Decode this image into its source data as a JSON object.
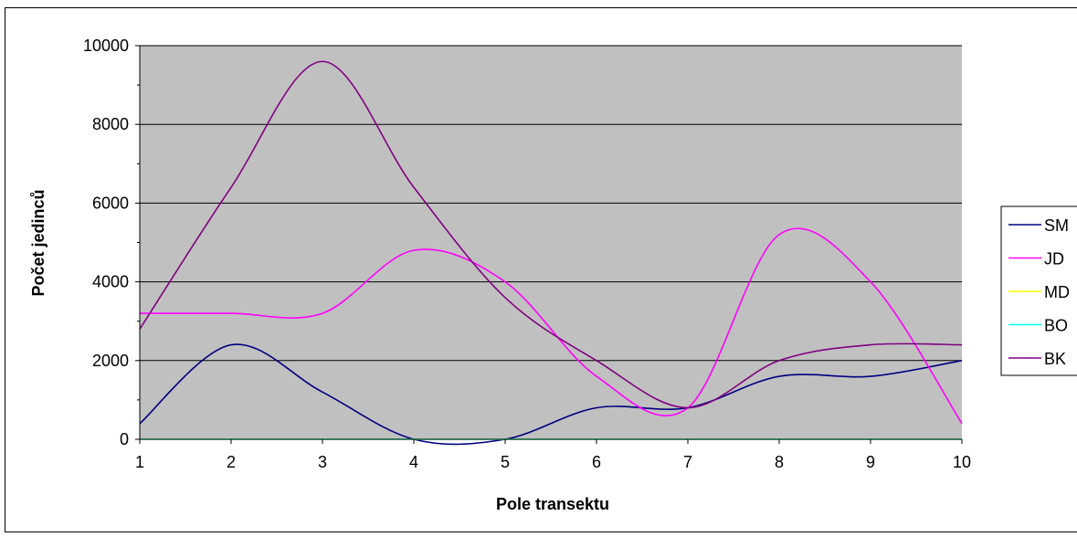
{
  "chart_data": {
    "type": "line",
    "xlabel": "Pole transektu",
    "ylabel": "Počet jedinců",
    "xlim": [
      1,
      10
    ],
    "ylim": [
      0,
      10000
    ],
    "x_ticks": [
      "1",
      "2",
      "3",
      "4",
      "5",
      "6",
      "7",
      "8",
      "9",
      "10"
    ],
    "y_ticks": [
      "0",
      "2000",
      "4000",
      "6000",
      "8000",
      "10000"
    ],
    "grid": true,
    "plot_background": "#c0c0c0",
    "legend_position": "right",
    "smooth": true,
    "x": [
      1,
      2,
      3,
      4,
      5,
      6,
      7,
      8,
      9,
      10
    ],
    "series": [
      {
        "name": "SM",
        "color": "#000080",
        "values": [
          400,
          2400,
          1200,
          0,
          0,
          800,
          800,
          1600,
          1600,
          2000
        ]
      },
      {
        "name": "JD",
        "color": "#ff00ff",
        "values": [
          3200,
          3200,
          3200,
          4800,
          4000,
          1600,
          800,
          5200,
          4000,
          400
        ]
      },
      {
        "name": "MD",
        "color": "#ffff00",
        "values": [
          0,
          0,
          0,
          0,
          0,
          0,
          0,
          0,
          0,
          0
        ]
      },
      {
        "name": "BO",
        "color": "#00ffff",
        "values": [
          0,
          0,
          0,
          0,
          0,
          0,
          0,
          0,
          0,
          0
        ]
      },
      {
        "name": "BK",
        "color": "#800080",
        "values": [
          2800,
          6400,
          9600,
          6400,
          3600,
          2000,
          800,
          2000,
          2400,
          2400
        ]
      }
    ]
  }
}
